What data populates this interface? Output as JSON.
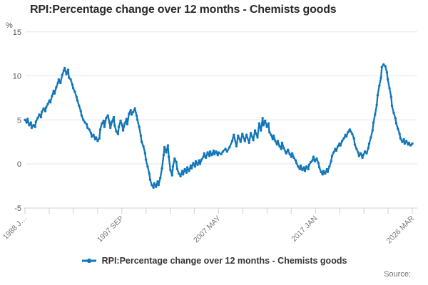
{
  "header": {
    "title": "RPI:Percentage change over 12 months - Chemists goods"
  },
  "legend": {
    "label": "RPI:Percentage change over 12 months - Chemists goods"
  },
  "footer": {
    "source": "Source:"
  },
  "colors": {
    "line": "#1276b9",
    "gridline": "#e6e6e6",
    "axis": "#c9d2e0",
    "title_text": "#2b2b2b",
    "tick_text": "#757575",
    "legend_text": "#333333"
  },
  "chart_data": {
    "type": "line",
    "title": "RPI:Percentage change over 12 months - Chemists goods",
    "y_unit": "%",
    "ylabel": "%",
    "xlabel": "",
    "ylim": [
      -5,
      15
    ],
    "yticks": [
      15,
      10,
      5,
      0,
      -5
    ],
    "grid": "horizontal",
    "legend_position": "bottom",
    "x_range": {
      "start_label": "1988 J…",
      "end_label": "2026 MAR",
      "start_month": "1988-01",
      "end_month": "2026-03",
      "total_months": 458
    },
    "x_tick_labels": [
      "1988 J…",
      "1997 SEP",
      "2007 MAY",
      "2017 JAN",
      "2026 MAR"
    ],
    "minor_tick_count": 17,
    "labeled_tick_every": 4,
    "series": [
      {
        "name": "RPI:Percentage change over 12 months - Chemists goods",
        "points": [
          [
            0,
            5.0
          ],
          [
            2,
            4.7
          ],
          [
            3,
            5.1
          ],
          [
            5,
            4.4
          ],
          [
            7,
            4.7
          ],
          [
            8,
            4.1
          ],
          [
            10,
            4.4
          ],
          [
            12,
            4.2
          ],
          [
            13,
            4.8
          ],
          [
            15,
            5.2
          ],
          [
            17,
            5.6
          ],
          [
            19,
            5.3
          ],
          [
            20,
            5.9
          ],
          [
            22,
            6.3
          ],
          [
            24,
            6.0
          ],
          [
            25,
            6.4
          ],
          [
            27,
            6.8
          ],
          [
            29,
            7.2
          ],
          [
            30,
            7.0
          ],
          [
            32,
            7.7
          ],
          [
            34,
            8.3
          ],
          [
            35,
            8.0
          ],
          [
            37,
            8.7
          ],
          [
            39,
            9.2
          ],
          [
            40,
            9.6
          ],
          [
            42,
            9.2
          ],
          [
            44,
            10.1
          ],
          [
            46,
            10.6
          ],
          [
            47,
            10.9
          ],
          [
            49,
            10.2
          ],
          [
            51,
            10.7
          ],
          [
            52,
            9.8
          ],
          [
            54,
            9.6
          ],
          [
            56,
            9.0
          ],
          [
            57,
            8.6
          ],
          [
            59,
            8.2
          ],
          [
            61,
            7.6
          ],
          [
            62,
            7.2
          ],
          [
            64,
            6.6
          ],
          [
            66,
            6.0
          ],
          [
            67,
            5.5
          ],
          [
            69,
            5.0
          ],
          [
            71,
            4.7
          ],
          [
            73,
            4.5
          ],
          [
            74,
            4.1
          ],
          [
            76,
            3.9
          ],
          [
            78,
            3.5
          ],
          [
            79,
            3.1
          ],
          [
            81,
            3.3
          ],
          [
            83,
            2.8
          ],
          [
            84,
            3.0
          ],
          [
            86,
            2.6
          ],
          [
            88,
            2.9
          ],
          [
            89,
            3.9
          ],
          [
            91,
            4.6
          ],
          [
            93,
            4.9
          ],
          [
            94,
            4.2
          ],
          [
            96,
            5.2
          ],
          [
            98,
            5.5
          ],
          [
            100,
            4.7
          ],
          [
            101,
            4.1
          ],
          [
            103,
            4.8
          ],
          [
            105,
            5.3
          ],
          [
            106,
            4.4
          ],
          [
            108,
            3.7
          ],
          [
            110,
            3.4
          ],
          [
            111,
            4.2
          ],
          [
            113,
            4.9
          ],
          [
            115,
            4.4
          ],
          [
            116,
            3.8
          ],
          [
            118,
            4.6
          ],
          [
            120,
            5.1
          ],
          [
            121,
            4.5
          ],
          [
            123,
            5.7
          ],
          [
            125,
            6.1
          ],
          [
            126,
            5.6
          ],
          [
            128,
            5.9
          ],
          [
            130,
            6.3
          ],
          [
            132,
            5.5
          ],
          [
            133,
            5.0
          ],
          [
            135,
            4.2
          ],
          [
            137,
            3.2
          ],
          [
            138,
            2.5
          ],
          [
            140,
            2.0
          ],
          [
            142,
            1.2
          ],
          [
            143,
            0.5
          ],
          [
            145,
            -0.3
          ],
          [
            147,
            -1.1
          ],
          [
            148,
            -1.8
          ],
          [
            150,
            -2.4
          ],
          [
            152,
            -2.7
          ],
          [
            153,
            -2.2
          ],
          [
            155,
            -2.6
          ],
          [
            157,
            -2.0
          ],
          [
            158,
            -2.4
          ],
          [
            160,
            -1.6
          ],
          [
            162,
            -0.5
          ],
          [
            164,
            1.0
          ],
          [
            165,
            1.9
          ],
          [
            167,
            1.3
          ],
          [
            169,
            2.1
          ],
          [
            170,
            0.8
          ],
          [
            172,
            -0.7
          ],
          [
            174,
            -1.3
          ],
          [
            175,
            -0.3
          ],
          [
            177,
            0.6
          ],
          [
            179,
            0.2
          ],
          [
            180,
            -0.6
          ],
          [
            182,
            -1.1
          ],
          [
            184,
            -1.4
          ],
          [
            186,
            -0.8
          ],
          [
            187,
            -1.2
          ],
          [
            189,
            -0.6
          ],
          [
            191,
            -1.0
          ],
          [
            192,
            -0.4
          ],
          [
            194,
            -0.8
          ],
          [
            196,
            -0.2
          ],
          [
            197,
            -0.5
          ],
          [
            199,
            0.1
          ],
          [
            201,
            -0.3
          ],
          [
            202,
            0.3
          ],
          [
            204,
            -0.1
          ],
          [
            206,
            0.4
          ],
          [
            207,
            0.0
          ],
          [
            209,
            0.5
          ],
          [
            211,
            0.8
          ],
          [
            212,
            1.2
          ],
          [
            214,
            0.7
          ],
          [
            216,
            1.3
          ],
          [
            218,
            0.9
          ],
          [
            219,
            1.4
          ],
          [
            221,
            1.0
          ],
          [
            223,
            1.5
          ],
          [
            224,
            1.1
          ],
          [
            226,
            1.4
          ],
          [
            228,
            1.0
          ],
          [
            229,
            1.3
          ],
          [
            232,
            1.1
          ],
          [
            234,
            1.4
          ],
          [
            237,
            1.7
          ],
          [
            239,
            1.4
          ],
          [
            242,
            1.9
          ],
          [
            245,
            2.6
          ],
          [
            247,
            3.3
          ],
          [
            250,
            2.0
          ],
          [
            252,
            3.2
          ],
          [
            255,
            2.5
          ],
          [
            257,
            3.4
          ],
          [
            260,
            2.6
          ],
          [
            262,
            3.3
          ],
          [
            265,
            2.4
          ],
          [
            267,
            3.5
          ],
          [
            270,
            2.7
          ],
          [
            272,
            3.8
          ],
          [
            275,
            3.0
          ],
          [
            277,
            4.6
          ],
          [
            279,
            3.8
          ],
          [
            281,
            5.2
          ],
          [
            282,
            4.4
          ],
          [
            284,
            4.9
          ],
          [
            286,
            4.2
          ],
          [
            288,
            4.6
          ],
          [
            289,
            3.6
          ],
          [
            291,
            3.3
          ],
          [
            293,
            2.8
          ],
          [
            294,
            3.2
          ],
          [
            296,
            2.6
          ],
          [
            298,
            2.2
          ],
          [
            299,
            2.6
          ],
          [
            301,
            2.0
          ],
          [
            303,
            1.7
          ],
          [
            304,
            2.4
          ],
          [
            306,
            1.8
          ],
          [
            308,
            1.4
          ],
          [
            309,
            1.2
          ],
          [
            311,
            1.6
          ],
          [
            313,
            1.1
          ],
          [
            315,
            0.8
          ],
          [
            316,
            1.2
          ],
          [
            318,
            0.7
          ],
          [
            320,
            0.4
          ],
          [
            321,
            0.1
          ],
          [
            323,
            -0.3
          ],
          [
            325,
            -0.6
          ],
          [
            326,
            -0.2
          ],
          [
            328,
            -0.7
          ],
          [
            330,
            -0.4
          ],
          [
            331,
            -0.8
          ],
          [
            333,
            -0.3
          ],
          [
            335,
            -0.6
          ],
          [
            336,
            -0.1
          ],
          [
            338,
            0.2
          ],
          [
            340,
            0.4
          ],
          [
            341,
            0.8
          ],
          [
            343,
            0.3
          ],
          [
            345,
            0.6
          ],
          [
            347,
            0.1
          ],
          [
            348,
            -0.4
          ],
          [
            350,
            -0.9
          ],
          [
            352,
            -1.2
          ],
          [
            353,
            -0.8
          ],
          [
            355,
            -1.1
          ],
          [
            357,
            -0.6
          ],
          [
            358,
            -0.9
          ],
          [
            360,
            -0.3
          ],
          [
            362,
            0.3
          ],
          [
            363,
            0.9
          ],
          [
            365,
            1.3
          ],
          [
            367,
            1.7
          ],
          [
            368,
            1.5
          ],
          [
            370,
            2.0
          ],
          [
            372,
            2.3
          ],
          [
            373,
            2.1
          ],
          [
            375,
            2.6
          ],
          [
            377,
            2.9
          ],
          [
            379,
            3.3
          ],
          [
            380,
            3.1
          ],
          [
            382,
            3.6
          ],
          [
            384,
            3.9
          ],
          [
            385,
            3.7
          ],
          [
            387,
            3.4
          ],
          [
            389,
            2.9
          ],
          [
            390,
            2.2
          ],
          [
            392,
            1.7
          ],
          [
            394,
            1.3
          ],
          [
            395,
            0.9
          ],
          [
            397,
            1.2
          ],
          [
            399,
            0.7
          ],
          [
            400,
            1.0
          ],
          [
            402,
            1.4
          ],
          [
            404,
            1.2
          ],
          [
            406,
            1.8
          ],
          [
            407,
            2.3
          ],
          [
            409,
            3.0
          ],
          [
            411,
            3.8
          ],
          [
            412,
            4.7
          ],
          [
            414,
            5.6
          ],
          [
            416,
            6.7
          ],
          [
            417,
            7.8
          ],
          [
            419,
            8.9
          ],
          [
            421,
            9.8
          ],
          [
            422,
            11.0
          ],
          [
            424,
            11.3
          ],
          [
            426,
            11.1
          ],
          [
            428,
            10.4
          ],
          [
            429,
            9.6
          ],
          [
            431,
            8.6
          ],
          [
            433,
            7.6
          ],
          [
            434,
            6.6
          ],
          [
            436,
            5.8
          ],
          [
            438,
            5.2
          ],
          [
            439,
            4.6
          ],
          [
            441,
            4.0
          ],
          [
            443,
            3.4
          ],
          [
            444,
            2.9
          ],
          [
            446,
            2.5
          ],
          [
            448,
            2.8
          ],
          [
            449,
            2.3
          ],
          [
            451,
            2.6
          ],
          [
            453,
            2.2
          ],
          [
            454,
            2.4
          ],
          [
            456,
            2.1
          ],
          [
            458,
            2.3
          ]
        ]
      }
    ]
  }
}
